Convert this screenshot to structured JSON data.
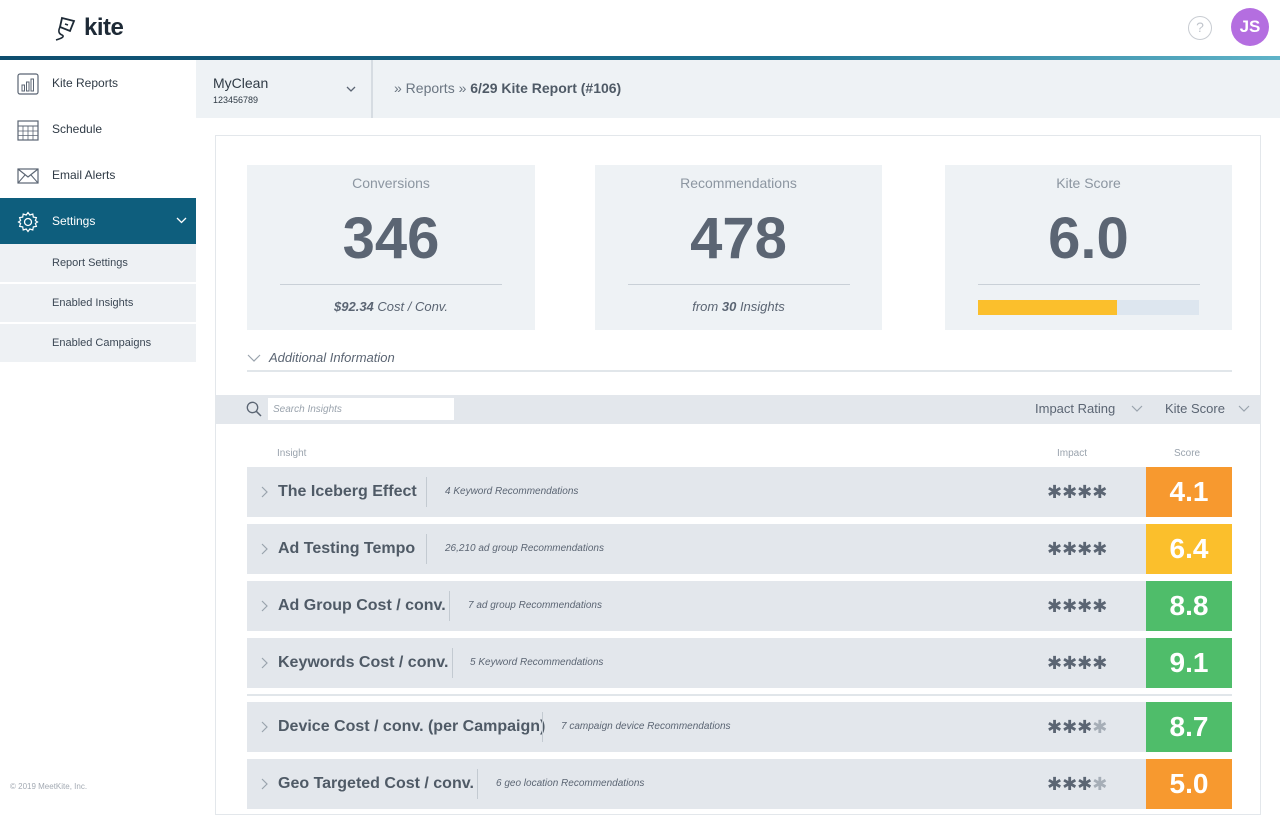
{
  "app": {
    "logo_text": "kite"
  },
  "header": {
    "help_label": "?",
    "avatar_initials": "JS"
  },
  "sidebar": {
    "items": [
      {
        "label": "Kite Reports",
        "icon": "chart-icon"
      },
      {
        "label": "Schedule",
        "icon": "calendar-icon"
      },
      {
        "label": "Email Alerts",
        "icon": "envelope-icon"
      },
      {
        "label": "Settings",
        "icon": "gear-icon"
      }
    ],
    "sub_items": [
      {
        "label": "Report Settings"
      },
      {
        "label": "Enabled Insights"
      },
      {
        "label": "Enabled Campaigns"
      }
    ],
    "copyright": "© 2019 MeetKite, Inc."
  },
  "account": {
    "name": "MyClean",
    "id": "123456789"
  },
  "breadcrumb": {
    "prefix": "» Reports »",
    "current": "6/29 Kite Report (#106)"
  },
  "cards": {
    "conversions": {
      "title": "Conversions",
      "value": "346",
      "foot_value": "$92.34",
      "foot_text": " Cost / Conv."
    },
    "recommendations": {
      "title": "Recommendations",
      "value": "478",
      "foot_prefix": "from ",
      "foot_value": "30",
      "foot_suffix": " Insights"
    },
    "kite_score": {
      "title": "Kite Score",
      "value": "6.0",
      "bar_fraction": 0.63,
      "bar_color": "#fbbf2c"
    }
  },
  "additional": {
    "label": "Additional Information"
  },
  "filters": {
    "search_placeholder": "Search Insights",
    "sort_impact": "Impact Rating",
    "sort_score": "Kite Score"
  },
  "table": {
    "headers": {
      "insight": "Insight",
      "impact": "Impact",
      "score": "Score"
    },
    "rows": [
      {
        "name": "The Iceberg Effect",
        "recs": "4 Keyword Recommendations",
        "stars": "✱✱✱✱",
        "dim_stars": "",
        "score": "4.1",
        "color": "#f7992f"
      },
      {
        "name": "Ad Testing Tempo",
        "recs": "26,210 ad group Recommendations",
        "stars": "✱✱✱✱",
        "dim_stars": "",
        "score": "6.4",
        "color": "#fbbf2c"
      },
      {
        "name": "Ad Group Cost / conv.",
        "recs": "7 ad group Recommendations",
        "stars": "✱✱✱✱",
        "dim_stars": "",
        "score": "8.8",
        "color": "#4fbd6a"
      },
      {
        "name": "Keywords Cost / conv.",
        "recs": "5 Keyword Recommendations",
        "stars": "✱✱✱✱",
        "dim_stars": "",
        "score": "9.1",
        "color": "#4fbd6a"
      },
      {
        "name": "Device Cost / conv. (per Campaign)",
        "recs": "7 campaign device Recommendations",
        "stars": "✱✱✱",
        "dim_stars": "✱",
        "score": "8.7",
        "color": "#4fbd6a"
      },
      {
        "name": "Geo Targeted Cost / conv.",
        "recs": "6 geo location Recommendations",
        "stars": "✱✱✱",
        "dim_stars": "✱",
        "score": "5.0",
        "color": "#f7992f"
      }
    ]
  }
}
